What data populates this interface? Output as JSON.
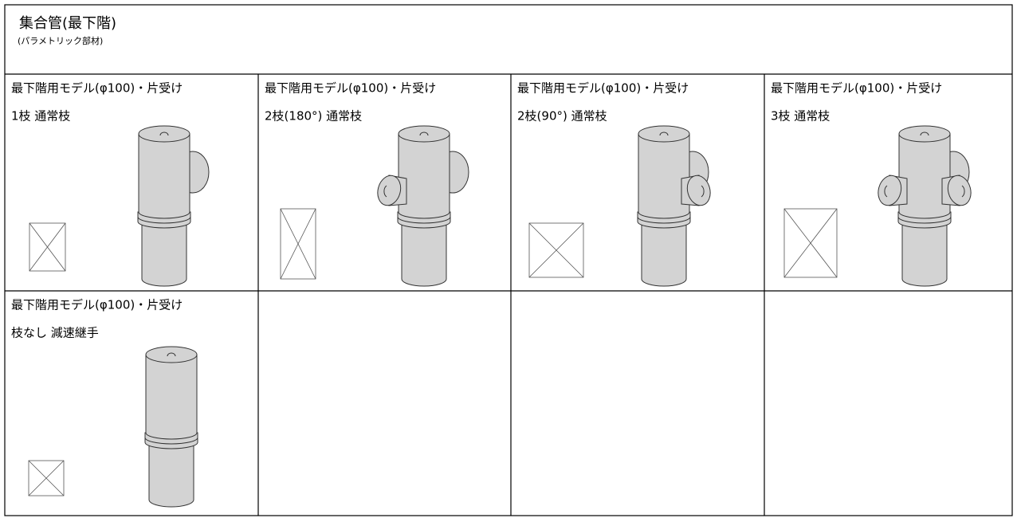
{
  "header": {
    "title": "集合管(最下階)",
    "subtitle": "(パラメトリック部材)"
  },
  "cells": [
    {
      "title": "最下階用モデル(φ100)・片受け",
      "label": "1枝 通常枝"
    },
    {
      "title": "最下階用モデル(φ100)・片受け",
      "label": "2枝(180°) 通常枝"
    },
    {
      "title": "最下階用モデル(φ100)・片受け",
      "label": "2枝(90°) 通常枝"
    },
    {
      "title": "最下階用モデル(φ100)・片受け",
      "label": "3枝 通常枝"
    },
    {
      "title": "最下階用モデル(φ100)・片受け",
      "label": "枝なし 減速継手"
    }
  ]
}
